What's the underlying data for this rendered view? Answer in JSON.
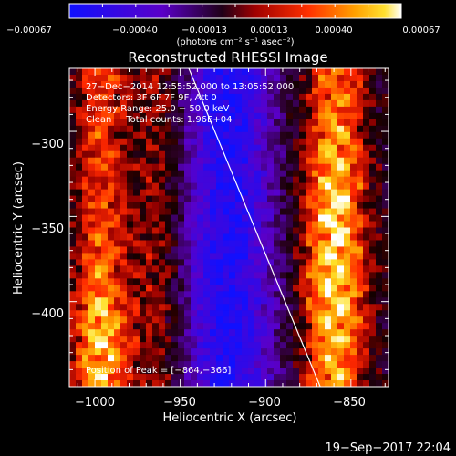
{
  "chart_data": {
    "type": "heatmap",
    "title": "Reconstructed RHESSI Image",
    "xlabel": "Heliocentric X (arcsec)",
    "ylabel": "Heliocentric Y (arcsec)",
    "xlim": [
      -1015,
      -828
    ],
    "ylim": [
      -450,
      -263
    ],
    "xticks": [
      -1000,
      -950,
      -900,
      -850
    ],
    "yticks": [
      -300,
      -350,
      -400
    ],
    "xtick_labels": [
      "−1000",
      "−950",
      "−900",
      "−850"
    ],
    "ytick_labels": [
      "−300",
      "−350",
      "−400"
    ],
    "grid": false,
    "colorbar": {
      "range": [
        -0.00067,
        0.00067
      ],
      "tick_labels": [
        "−0.00067",
        "−0.00040",
        "−0.00013",
        "0.00013",
        "0.00040",
        "0.00067"
      ],
      "unit_label": "(photons cm⁻² s⁻¹ asec⁻²)",
      "colors": [
        "#0000ff",
        "#5500bb",
        "#000000",
        "#bb0000",
        "#ff5500",
        "#ffcc00",
        "#ffffff"
      ]
    },
    "limb_line": {
      "x": [
        -945,
        -868
      ],
      "y": [
        -263,
        -450
      ]
    },
    "peak": {
      "x": -864,
      "y": -366
    }
  },
  "annotations": {
    "line1": "27−Dec−2014 12:55:52.000 to 13:05:52.000",
    "line2": "Detectors: 3F 6F 7F 9F, Att 0",
    "line3": "Energy Range: 25.0 − 50.0 keV",
    "line4": "Clean     Total counts: 1.96E+04",
    "peak_label": "Position of Peak = [−864,−366]"
  },
  "footer": {
    "timestamp": "19−Sep−2017 22:04"
  }
}
